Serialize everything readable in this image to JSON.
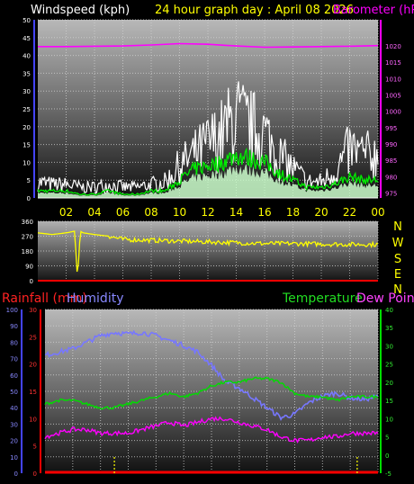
{
  "header": {
    "windspeed_label": "Windspeed (kph)",
    "title": "24 hour graph day : April 08 2026",
    "barometer_label": "Barometer (hPa)"
  },
  "labels": {
    "rainfall": "Rainfall (mm)",
    "humidity": "Humidity",
    "temperature": "Temperature",
    "dew_point": "Dew Point"
  },
  "colors": {
    "wind_gust": "#ffffff",
    "wind_avg": "#00ee00",
    "wind_fill": "#ccffcc",
    "barometer": "#ff00ff",
    "direction": "#ffff00",
    "humidity": "#7777ff",
    "temperature": "#00dd00",
    "dew_point": "#ff00ff",
    "rainfall": "#ff0000",
    "grid": "#d0d0d0"
  },
  "chart_data": [
    {
      "type": "line",
      "name": "wind-barometer",
      "title": "24 hour graph day : April 08 2026",
      "y_left_label": "Windspeed (kph)",
      "y_right_label": "Barometer (hPa)",
      "y_left_ticks": [
        0,
        5,
        10,
        15,
        20,
        25,
        30,
        35,
        40,
        45,
        50
      ],
      "y_left_range": [
        0,
        50
      ],
      "y_right_ticks": [
        975,
        980,
        985,
        990,
        995,
        1000,
        1005,
        1010,
        1015,
        1020
      ],
      "y_right_range": [
        973.5,
        1028
      ],
      "x_ticks": [
        "02",
        "04",
        "06",
        "08",
        "10",
        "12",
        "14",
        "16",
        "18",
        "20",
        "22",
        "00"
      ],
      "x_range_hours": [
        0,
        24
      ],
      "grid": true,
      "series": [
        {
          "role": "barometer",
          "x": [
            0,
            2,
            4,
            6,
            8,
            10,
            12,
            14,
            16,
            18,
            20,
            22,
            24
          ],
          "values": [
            1019.8,
            1019.8,
            1019.9,
            1020.0,
            1020.3,
            1020.7,
            1020.5,
            1020.0,
            1019.6,
            1019.7,
            1019.8,
            1019.9,
            1020.1
          ]
        },
        {
          "role": "gust",
          "x": [
            0,
            1,
            2,
            3,
            4,
            5,
            6,
            7,
            8,
            9,
            10,
            11,
            12,
            13,
            14,
            15,
            16,
            17,
            18,
            19,
            20,
            21,
            22,
            23,
            24
          ],
          "values": [
            6,
            5,
            5,
            4,
            4,
            5,
            4,
            4,
            5,
            6,
            12,
            16,
            20,
            24,
            30,
            26,
            24,
            16,
            11,
            6,
            6,
            10,
            18,
            16,
            16
          ]
        },
        {
          "role": "average",
          "x": [
            0,
            1,
            2,
            3,
            4,
            5,
            6,
            7,
            8,
            9,
            10,
            11,
            12,
            13,
            14,
            15,
            16,
            17,
            18,
            19,
            20,
            21,
            22,
            23,
            24
          ],
          "values": [
            2,
            2,
            2,
            1,
            1,
            2,
            1,
            1,
            2,
            2,
            5,
            8,
            9,
            10,
            12,
            11,
            10,
            7,
            5,
            3,
            3,
            4,
            6,
            5,
            5
          ]
        }
      ]
    },
    {
      "type": "line",
      "name": "wind-direction",
      "y_left_ticks": [
        0,
        90,
        180,
        270,
        360
      ],
      "y_left_range": [
        0,
        360
      ],
      "y_right_ticks": [
        "N",
        "W",
        "S",
        "E",
        "N"
      ],
      "x_range_hours": [
        0,
        24
      ],
      "grid": true,
      "series": [
        {
          "role": "direction",
          "x": [
            0,
            1,
            2,
            2.6,
            2.8,
            3.0,
            3.2,
            4,
            5,
            6,
            8,
            10,
            12,
            14,
            16,
            18,
            20,
            22,
            24
          ],
          "values": [
            290,
            280,
            290,
            300,
            10,
            300,
            290,
            280,
            270,
            250,
            245,
            240,
            235,
            230,
            225,
            225,
            222,
            220,
            220
          ]
        }
      ]
    },
    {
      "type": "line",
      "name": "temp-humidity-rain",
      "y_humidity_ticks": [
        0,
        10,
        20,
        30,
        40,
        50,
        60,
        70,
        80,
        90,
        100
      ],
      "y_humidity_range": [
        0,
        100
      ],
      "y_rain_ticks": [
        0,
        5,
        10,
        15,
        20,
        25,
        30
      ],
      "y_rain_range": [
        0,
        30
      ],
      "y_temp_ticks": [
        -5,
        0,
        5,
        10,
        15,
        20,
        25,
        30,
        35,
        40
      ],
      "y_temp_range": [
        -5,
        40
      ],
      "x_range_hours": [
        0,
        24
      ],
      "grid": true,
      "series": [
        {
          "role": "humidity",
          "x": [
            0,
            1,
            2,
            3,
            4,
            5,
            6,
            7,
            8,
            9,
            10,
            11,
            12,
            13,
            14,
            15,
            16,
            17,
            18,
            19,
            20,
            21,
            22,
            23,
            24
          ],
          "values": [
            72,
            74,
            76,
            80,
            84,
            86,
            85,
            86,
            84,
            81,
            78,
            74,
            66,
            56,
            52,
            46,
            40,
            34,
            36,
            43,
            47,
            49,
            46,
            45,
            47
          ]
        },
        {
          "role": "temperature",
          "x": [
            0,
            1,
            2,
            3,
            4,
            5,
            6,
            7,
            8,
            9,
            10,
            11,
            12,
            13,
            14,
            15,
            16,
            17,
            18,
            19,
            20,
            21,
            22,
            23,
            24
          ],
          "values": [
            14,
            15,
            15,
            14,
            13,
            13,
            14,
            15,
            16,
            17,
            16,
            17,
            19,
            20,
            20,
            21,
            21,
            20,
            17,
            16,
            16,
            15,
            16,
            16,
            16
          ]
        },
        {
          "role": "dew_point",
          "x": [
            0,
            1,
            2,
            3,
            4,
            5,
            6,
            7,
            8,
            9,
            10,
            11,
            12,
            13,
            14,
            15,
            16,
            17,
            18,
            19,
            20,
            21,
            22,
            23,
            24
          ],
          "values": [
            5,
            6,
            7,
            7,
            6,
            6,
            6,
            7,
            8,
            9,
            8,
            9,
            10,
            10,
            9,
            8,
            7,
            5,
            4,
            4,
            5,
            5,
            6,
            6,
            6
          ]
        },
        {
          "role": "rainfall",
          "x": [
            0,
            24
          ],
          "values": [
            0,
            0
          ]
        }
      ]
    }
  ]
}
